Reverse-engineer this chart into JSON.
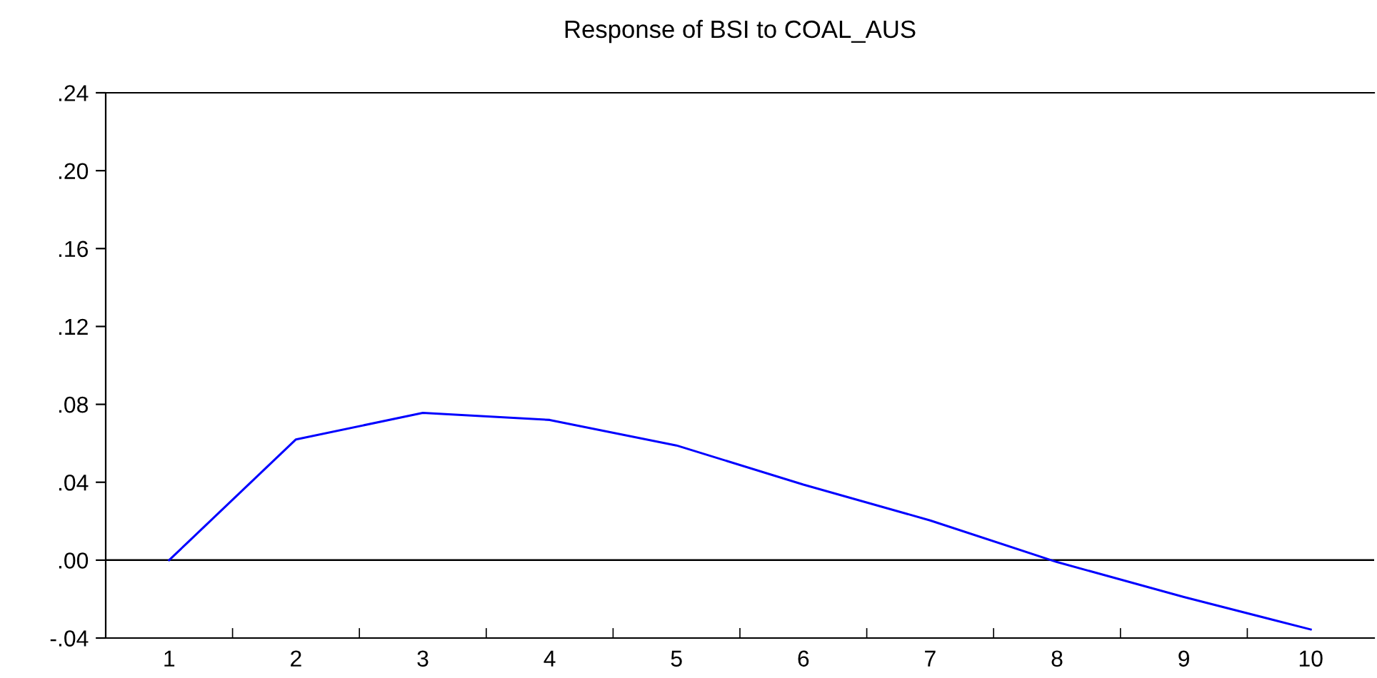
{
  "chart_data": {
    "type": "line",
    "title": "Response of BSI to COAL_AUS",
    "categories": [
      "1",
      "2",
      "3",
      "4",
      "5",
      "6",
      "7",
      "8",
      "9",
      "10"
    ],
    "series": [
      {
        "color": "#0000ff",
        "values": [
          0.0,
          0.062,
          0.0756,
          0.072,
          0.0589,
          0.0388,
          0.0204,
          -0.001,
          -0.0189,
          -0.0356
        ]
      }
    ],
    "ylim": [
      -0.04,
      0.24
    ],
    "yticks": [
      {
        "value": -0.04,
        "label": "-.04"
      },
      {
        "value": 0.0,
        "label": ".00"
      },
      {
        "value": 0.04,
        "label": ".04"
      },
      {
        "value": 0.08,
        "label": ".08"
      },
      {
        "value": 0.12,
        "label": ".12"
      },
      {
        "value": 0.16,
        "label": ".16"
      },
      {
        "value": 0.2,
        "label": ".20"
      },
      {
        "value": 0.24,
        "label": ".24"
      }
    ],
    "ref_lines": [
      {
        "axis": "y",
        "value": 0.0,
        "color": "#000000"
      }
    ],
    "grid": false,
    "legend": false,
    "marker": "none",
    "line_style": "solid"
  }
}
